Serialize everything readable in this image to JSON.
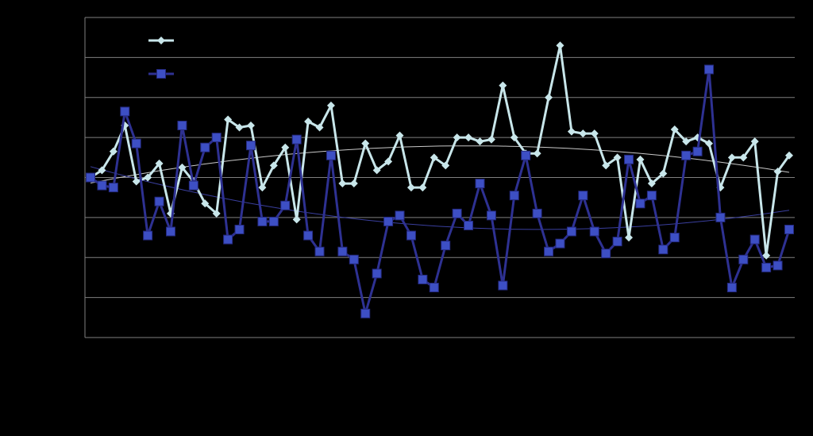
{
  "chart_data": {
    "type": "line",
    "title": "",
    "xlabel": "",
    "ylabel": "",
    "grid": true,
    "legend": "top-left",
    "ylim": [
      -4,
      4
    ],
    "y_gridlines": [
      -4,
      -3,
      -2,
      -1,
      0,
      1,
      2,
      3,
      4
    ],
    "series": [
      {
        "marker": "diamond",
        "color": "#c8e6ea",
        "values": [
          0,
          0.18,
          0.65,
          1.3,
          -0.1,
          0,
          0.35,
          -0.9,
          0.25,
          -0.1,
          -0.65,
          -0.9,
          1.45,
          1.25,
          1.3,
          -0.25,
          0.3,
          0.75,
          -1.05,
          1.4,
          1.25,
          1.8,
          -0.15,
          -0.15,
          0.85,
          0.18,
          0.4,
          1.05,
          -0.25,
          -0.25,
          0.5,
          0.3,
          1.0,
          1.0,
          0.9,
          0.95,
          2.3,
          1.0,
          0.6,
          0.6,
          2.0,
          3.3,
          1.15,
          1.1,
          1.1,
          0.3,
          0.5,
          -1.5,
          0.45,
          -0.15,
          0.1,
          1.2,
          0.9,
          1.0,
          0.85,
          -0.25,
          0.5,
          0.5,
          0.9,
          -1.95,
          0.15,
          0.55
        ]
      },
      {
        "marker": "square",
        "color": "#2e3192",
        "values": [
          0,
          -0.2,
          -0.25,
          1.65,
          0.85,
          -1.45,
          -0.6,
          -1.35,
          1.3,
          -0.2,
          0.75,
          1.0,
          -1.55,
          -1.3,
          0.8,
          -1.1,
          -1.1,
          -0.7,
          0.95,
          -1.45,
          -1.85,
          0.55,
          -1.85,
          -2.05,
          -3.4,
          -2.4,
          -1.1,
          -0.95,
          -1.45,
          -2.55,
          -2.75,
          -1.7,
          -0.9,
          -1.2,
          -0.15,
          -0.95,
          -2.7,
          -0.45,
          0.55,
          -0.9,
          -1.85,
          -1.65,
          -1.35,
          -0.45,
          -1.35,
          -1.9,
          -1.6,
          0.45,
          -0.65,
          -0.45,
          -1.8,
          -1.5,
          0.55,
          0.65,
          2.7,
          -1.0,
          -2.75,
          -2.05,
          -1.55,
          -2.25,
          -2.2,
          -1.3
        ]
      }
    ]
  }
}
